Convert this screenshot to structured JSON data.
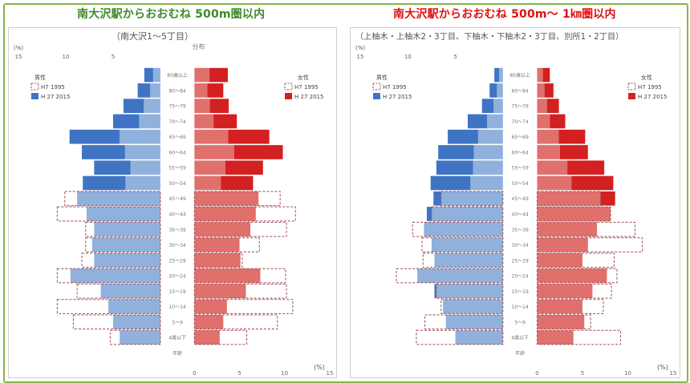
{
  "header": {
    "left_title": "南大沢駅からおおむね 500m圏以内",
    "right_title": "南大沢駅からおおむね 500m～ 1㎞圏以内"
  },
  "colors": {
    "male_2015": "#3f74c4",
    "female_2015": "#d32020",
    "male_light": "#8fb1dc",
    "female_light": "#e0706c",
    "outline_1995": "#a04a56",
    "frame": "#86b64a",
    "left_title": "#3d8a2a",
    "right_title": "#e01010"
  },
  "chart_data": [
    {
      "type": "bar",
      "subtype": "population-pyramid",
      "subtitle": "（南大沢1～5丁目）",
      "subtitle2": "分布",
      "unit_label": "(%)",
      "male_ticks": [
        "15",
        "10",
        "5"
      ],
      "female_ticks": [
        "0",
        "5",
        "10",
        "15"
      ],
      "xlim": [
        0,
        15
      ],
      "legend_male": {
        "title": "男性",
        "items": [
          "H7 1995",
          "H 27 2015"
        ]
      },
      "legend_female": {
        "title": "女性",
        "items": [
          "H7 1995",
          "H 27 2015"
        ]
      },
      "categories": [
        "年齢",
        "4歳以下",
        "5～9",
        "10～14",
        "15～19",
        "20～24",
        "25～29",
        "30～34",
        "35～39",
        "40～44",
        "45～49",
        "50～54",
        "55～59",
        "60～64",
        "65～69",
        "70～74",
        "75～79",
        "80～84",
        "85歳以上"
      ],
      "series": [
        {
          "name": "H7 1995",
          "side": "male",
          "values": [
            0,
            5.3,
            9.2,
            10.9,
            8.8,
            10.9,
            8.3,
            7.9,
            7.9,
            10.9,
            10.1,
            0,
            0,
            0,
            0,
            0,
            0,
            0,
            0
          ]
        },
        {
          "name": "H 27 2015",
          "side": "male",
          "values": [
            0,
            4.3,
            5.0,
            5.5,
            6.3,
            9.5,
            7.0,
            7.2,
            7.0,
            7.8,
            8.8,
            8.2,
            7.0,
            8.3,
            9.6,
            5.0,
            3.9,
            2.4,
            1.7
          ]
        },
        {
          "name": "H7 1995",
          "side": "female",
          "values": [
            0,
            5.8,
            9.2,
            10.9,
            10.2,
            10.1,
            5.3,
            7.2,
            10.2,
            11.2,
            9.5,
            0,
            0,
            0,
            0,
            0,
            0,
            0,
            0
          ]
        },
        {
          "name": "H 27 2015",
          "side": "female",
          "values": [
            0,
            2.8,
            3.2,
            3.6,
            5.7,
            7.3,
            5.1,
            5.0,
            6.2,
            6.8,
            7.1,
            6.5,
            7.6,
            9.8,
            8.3,
            4.7,
            3.8,
            3.2,
            3.7
          ]
        }
      ]
    },
    {
      "type": "bar",
      "subtype": "population-pyramid",
      "subtitle": "（上柚木・上柚木2・3丁目、下柚木・下柚木2・3丁目、別所1・2丁目）",
      "subtitle2": "",
      "unit_label": "(%)",
      "male_ticks": [
        "15",
        "10",
        "5"
      ],
      "female_ticks": [
        "0",
        "5",
        "10",
        "15"
      ],
      "xlim": [
        0,
        15
      ],
      "legend_male": {
        "title": "男性",
        "items": [
          "H7 1995",
          "H 27 2015"
        ]
      },
      "legend_female": {
        "title": "女性",
        "items": [
          "H7 1995",
          "H 27 2015"
        ]
      },
      "categories": [
        "年齢",
        "4歳以下",
        "5～9",
        "10～14",
        "15～19",
        "20～24",
        "25～29",
        "30～34",
        "35～39",
        "40～44",
        "45～49",
        "50～54",
        "55～59",
        "60～64",
        "65～69",
        "70～74",
        "75～79",
        "80～84",
        "85歳以上"
      ],
      "series": [
        {
          "name": "H7 1995",
          "side": "male",
          "values": [
            0,
            9.1,
            8.2,
            6.5,
            7.0,
            11.2,
            8.4,
            8.5,
            9.5,
            7.5,
            6.5,
            0,
            0,
            0,
            0,
            0,
            0,
            0,
            0
          ]
        },
        {
          "name": "H 27 2015",
          "side": "male",
          "values": [
            0,
            5.0,
            6.0,
            6.3,
            7.2,
            9.0,
            7.2,
            7.5,
            8.3,
            8.0,
            7.3,
            7.6,
            7.0,
            6.8,
            5.8,
            3.7,
            2.2,
            1.4,
            0.9
          ]
        },
        {
          "name": "H7 1995",
          "side": "female",
          "values": [
            0,
            9.2,
            5.9,
            7.3,
            8.2,
            8.8,
            8.5,
            11.6,
            10.8,
            8.1,
            7.0,
            0,
            0,
            0,
            0,
            0,
            0,
            0,
            0
          ]
        },
        {
          "name": "H 27 2015",
          "side": "female",
          "values": [
            0,
            4.0,
            5.2,
            5.0,
            6.1,
            7.7,
            5.0,
            5.6,
            6.6,
            8.1,
            8.6,
            8.4,
            7.4,
            5.6,
            5.3,
            3.1,
            2.4,
            1.8,
            1.4
          ]
        }
      ]
    }
  ]
}
